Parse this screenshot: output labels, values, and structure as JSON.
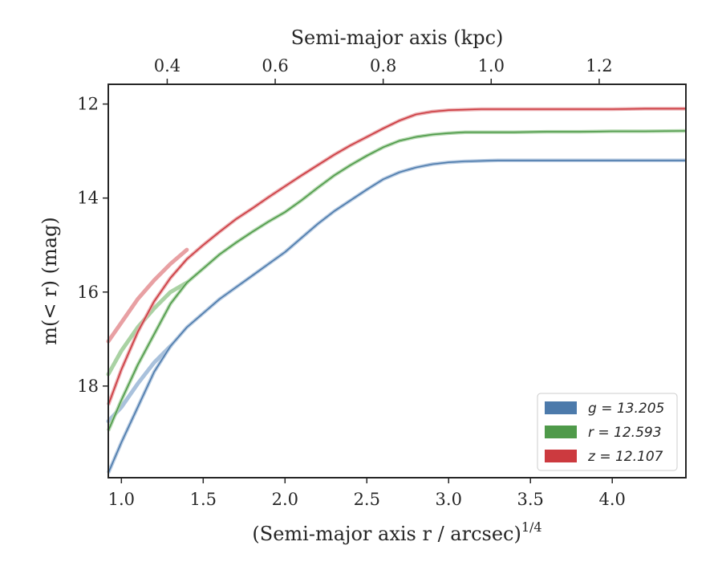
{
  "chart_data": {
    "type": "line",
    "xlabel_bottom": "(Semi-major axis r / arcsec)",
    "xlabel_bottom_superscript": "1/4",
    "xlabel_top": "Semi-major axis (kpc)",
    "ylabel": "m(< r) (mag)",
    "xlim": [
      0.92,
      4.45
    ],
    "ylim": [
      19.95,
      11.58
    ],
    "y_inverted": true,
    "x_ticks": [
      "1.0",
      "1.5",
      "2.0",
      "2.5",
      "3.0",
      "3.5",
      "4.0"
    ],
    "x_tick_values": [
      1.0,
      1.5,
      2.0,
      2.5,
      3.0,
      3.5,
      4.0
    ],
    "y_ticks": [
      "12",
      "14",
      "16",
      "18"
    ],
    "y_tick_values": [
      12,
      14,
      16,
      18
    ],
    "top_ticks": [
      "0.4",
      "0.6",
      "0.8",
      "1.0",
      "1.2"
    ],
    "top_tick_positions_bottom_units": [
      1.28,
      1.94,
      2.6,
      3.26,
      3.92
    ],
    "grid": false,
    "legend_position": "bottom-right",
    "series": [
      {
        "name": "g = 13.205",
        "color": "#4c7aab",
        "band_color": "#a9c1dc",
        "x": [
          0.92,
          1.0,
          1.1,
          1.2,
          1.3,
          1.4,
          1.5,
          1.6,
          1.7,
          1.8,
          1.9,
          2.0,
          2.1,
          2.2,
          2.3,
          2.4,
          2.5,
          2.6,
          2.7,
          2.8,
          2.9,
          3.0,
          3.1,
          3.2,
          3.3,
          3.4,
          3.6,
          3.8,
          4.0,
          4.2,
          4.45
        ],
        "values": [
          19.85,
          19.2,
          18.45,
          17.7,
          17.15,
          16.75,
          16.45,
          16.15,
          15.9,
          15.65,
          15.4,
          15.15,
          14.85,
          14.55,
          14.28,
          14.05,
          13.82,
          13.6,
          13.45,
          13.35,
          13.28,
          13.24,
          13.22,
          13.21,
          13.2,
          13.2,
          13.2,
          13.2,
          13.2,
          13.2,
          13.2
        ],
        "band_x": [
          0.92,
          1.0,
          1.1,
          1.2,
          1.3
        ],
        "band_values": [
          18.75,
          18.45,
          17.95,
          17.5,
          17.15
        ]
      },
      {
        "name": "r = 12.593",
        "color": "#4f9a4a",
        "band_color": "#a9d2a3",
        "x": [
          0.92,
          1.0,
          1.1,
          1.2,
          1.3,
          1.4,
          1.5,
          1.6,
          1.7,
          1.8,
          1.9,
          2.0,
          2.1,
          2.2,
          2.3,
          2.4,
          2.5,
          2.6,
          2.7,
          2.8,
          2.9,
          3.0,
          3.1,
          3.2,
          3.3,
          3.4,
          3.6,
          3.8,
          4.0,
          4.2,
          4.45
        ],
        "values": [
          18.95,
          18.3,
          17.55,
          16.9,
          16.25,
          15.8,
          15.5,
          15.2,
          14.95,
          14.72,
          14.5,
          14.3,
          14.05,
          13.78,
          13.52,
          13.3,
          13.1,
          12.92,
          12.78,
          12.7,
          12.65,
          12.62,
          12.6,
          12.6,
          12.6,
          12.6,
          12.59,
          12.59,
          12.58,
          12.58,
          12.57
        ],
        "band_x": [
          0.92,
          1.0,
          1.1,
          1.2,
          1.3,
          1.4
        ],
        "band_values": [
          17.75,
          17.25,
          16.75,
          16.35,
          16.0,
          15.8
        ]
      },
      {
        "name": "z = 12.107",
        "color": "#cc3a3f",
        "band_color": "#e8a0a3",
        "x": [
          0.92,
          1.0,
          1.1,
          1.2,
          1.3,
          1.4,
          1.5,
          1.6,
          1.7,
          1.8,
          1.9,
          2.0,
          2.1,
          2.2,
          2.3,
          2.4,
          2.5,
          2.6,
          2.7,
          2.8,
          2.9,
          3.0,
          3.1,
          3.2,
          3.3,
          3.4,
          3.6,
          3.8,
          4.0,
          4.2,
          4.45
        ],
        "values": [
          18.4,
          17.65,
          16.85,
          16.2,
          15.7,
          15.3,
          15.0,
          14.72,
          14.45,
          14.22,
          13.98,
          13.75,
          13.52,
          13.3,
          13.08,
          12.88,
          12.7,
          12.52,
          12.35,
          12.22,
          12.16,
          12.13,
          12.12,
          12.11,
          12.11,
          12.11,
          12.11,
          12.11,
          12.11,
          12.1,
          12.1
        ],
        "band_x": [
          0.92,
          1.0,
          1.1,
          1.2,
          1.3,
          1.4
        ],
        "band_values": [
          17.05,
          16.65,
          16.15,
          15.75,
          15.4,
          15.1
        ]
      }
    ]
  }
}
